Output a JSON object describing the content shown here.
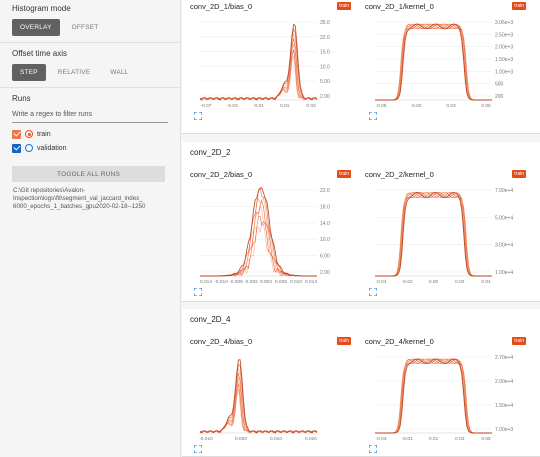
{
  "sidebar": {
    "histogram_mode": {
      "title": "Histogram mode",
      "options": [
        "OVERLAY",
        "OFFSET"
      ],
      "active": "OVERLAY"
    },
    "offset_axis": {
      "title": "Offset time axis",
      "options": [
        "STEP",
        "RELATIVE",
        "WALL"
      ],
      "active": "STEP"
    },
    "runs": {
      "title": "Runs",
      "regex_placeholder": "Write a regex to filter runs",
      "items": [
        {
          "label": "train",
          "checked": true,
          "color": "#f4511e",
          "box_color": "#e8794a"
        },
        {
          "label": "validation",
          "checked": true,
          "color": "#1976d2",
          "box_color": "#1565c0"
        }
      ],
      "toggle_label": "TOGGLE ALL RUNS",
      "log_path": [
        "C:\\Git repositories\\Avalon-",
        "Inspection\\logs\\fit\\segment_val_jaccard_index_",
        "6000_epochs_1_batches_gpu2020-02-18--1250"
      ]
    }
  },
  "groups": [
    {
      "name": "",
      "cards": [
        {
          "title": "conv_2D_1/bias_0",
          "tag": "train",
          "xticks": [
            "-0.07",
            "-0.03",
            "-0.01",
            "0.01",
            "0.03"
          ],
          "yticks": [
            "35.0",
            "22.0",
            "15.0",
            "10.0",
            "5.00",
            "2.00"
          ],
          "shape": "spike",
          "skew": 0.8
        },
        {
          "title": "conv_2D_1/kernel_0",
          "tag": "train",
          "xticks": [
            "-0.05",
            "-0.02",
            "0.03",
            "0.05"
          ],
          "yticks": [
            "3.06e+3",
            "2.50e+3",
            "2.00e+3",
            "1.50e+3",
            "1.00e+3",
            "500",
            "200"
          ],
          "shape": "plateau",
          "skew": 0.5
        }
      ]
    },
    {
      "name": "conv_2D_2",
      "cards": [
        {
          "title": "conv_2D_2/bias_0",
          "tag": "train",
          "xticks": [
            "0.014",
            "-0.010",
            "-0.006",
            "-0.002",
            "0.002",
            "0.006",
            "0.010",
            "0.014"
          ],
          "yticks": [
            "22.0",
            "18.0",
            "14.0",
            "10.0",
            "6.00",
            "2.00"
          ],
          "shape": "noisy",
          "skew": 0.52
        },
        {
          "title": "conv_2D_2/kernel_0",
          "tag": "train",
          "xticks": [
            "-0.04",
            "-0.02",
            "0.00",
            "0.02",
            "0.04"
          ],
          "yticks": [
            "7.00e+4",
            "5.00e+4",
            "3.00e+4",
            "1.00e+4"
          ],
          "shape": "plateau",
          "skew": 0.5
        }
      ]
    },
    {
      "name": "conv_2D_4",
      "cards": [
        {
          "title": "conv_2D_4/bias_0",
          "tag": "train",
          "xticks": [
            "-0.010",
            "0.000",
            "0.010",
            "0.020"
          ],
          "yticks": [],
          "shape": "spike",
          "skew": 0.33
        },
        {
          "title": "conv_2D_4/kernel_0",
          "tag": "train",
          "xticks": [
            "-0.03",
            "-0.01",
            "0.01",
            "0.03",
            "0.05"
          ],
          "yticks": [
            "2.70e+4",
            "2.00e+4",
            "1.50e+4",
            "7.00e+3"
          ],
          "shape": "plateau",
          "skew": 0.45
        }
      ]
    }
  ],
  "colors": {
    "accent": "#e64a19",
    "line_dark": "#b23a12",
    "line_light": "#f4a582"
  }
}
